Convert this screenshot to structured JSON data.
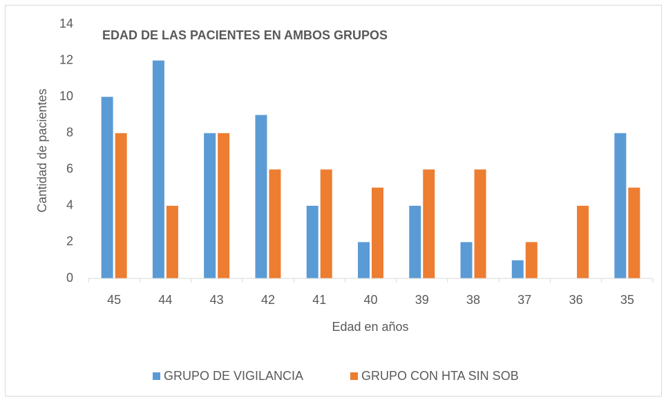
{
  "chart_data": {
    "type": "bar",
    "title": "EDAD DE LAS PACIENTES EN AMBOS GRUPOS",
    "x_label": "Edad en años",
    "y_label": "Cantidad de pacientes",
    "categories": [
      "45",
      "44",
      "43",
      "42",
      "41",
      "40",
      "39",
      "38",
      "37",
      "36",
      "35"
    ],
    "series": [
      {
        "name": "GRUPO DE VIGILANCIA",
        "color": "#5b9bd5",
        "values": [
          10,
          12,
          8,
          9,
          4,
          2,
          4,
          2,
          1,
          0,
          8
        ]
      },
      {
        "name": "GRUPO CON HTA SIN SOB",
        "color": "#ed7d31",
        "values": [
          8,
          4,
          8,
          6,
          6,
          5,
          6,
          6,
          2,
          4,
          5
        ]
      }
    ],
    "ylim": [
      0,
      14
    ],
    "yticks": [
      0,
      2,
      4,
      6,
      8,
      10,
      12,
      14
    ],
    "grid": false,
    "legend": "bottom"
  }
}
